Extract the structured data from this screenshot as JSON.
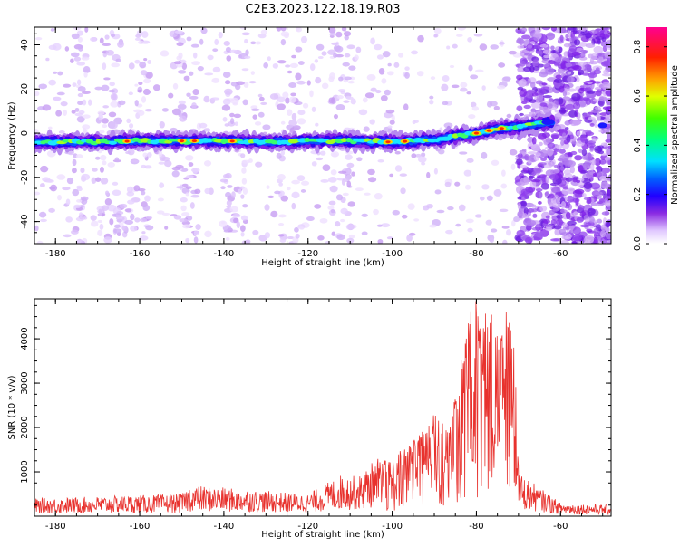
{
  "title": "C2E3.2023.122.18.19.R03",
  "chart_data": [
    {
      "type": "heatmap",
      "xlabel": "Height of straight line (km)",
      "ylabel": "Frequency (Hz)",
      "xlim": [
        -185,
        -48
      ],
      "ylim": [
        -50,
        48
      ],
      "xticks": [
        -180,
        -160,
        -140,
        -120,
        -100,
        -80,
        -60
      ],
      "yticks": [
        -40,
        -20,
        0,
        20,
        40
      ],
      "ridge": {
        "x": [
          -185,
          -170,
          -160,
          -150,
          -140,
          -130,
          -120,
          -110,
          -100,
          -90,
          -80,
          -75,
          -70,
          -62
        ],
        "freq": [
          -4,
          -4,
          -3.5,
          -3.5,
          -3.5,
          -4,
          -3.5,
          -3.5,
          -4,
          -3,
          0,
          2,
          3,
          5
        ]
      },
      "hot_spots_x": [
        -163,
        -150,
        -147,
        -138,
        -101,
        -97,
        -80,
        -77,
        -74
      ],
      "colorbar": {
        "label": "Normalized spectral amplitude",
        "range": [
          0.0,
          0.88
        ],
        "ticks": [
          "0.0",
          "0.2",
          "0.4",
          "0.6",
          "0.8"
        ]
      },
      "grid": false
    },
    {
      "type": "line",
      "xlabel": "Height of straight line (km)",
      "ylabel": "SNR (10 * v/v)",
      "xlim": [
        -185,
        -48
      ],
      "ylim": [
        0,
        4900
      ],
      "xticks": [
        -180,
        -160,
        -140,
        -120,
        -100,
        -80,
        -60
      ],
      "yticks": [
        1000,
        2000,
        3000,
        4000
      ],
      "line_color": "#e8322e",
      "envelope": {
        "x": [
          -185,
          -150,
          -148,
          -120,
          -112,
          -108,
          -104,
          -101,
          -95,
          -90,
          -86,
          -84,
          -82,
          -80,
          -79,
          -77,
          -75,
          -73,
          -71,
          -70,
          -60,
          -48
        ],
        "y": [
          400,
          500,
          700,
          500,
          950,
          900,
          1300,
          1250,
          1700,
          2300,
          2000,
          3400,
          4500,
          4900,
          4200,
          4600,
          4100,
          4700,
          4300,
          1000,
          300,
          250
        ]
      },
      "grid": false
    }
  ]
}
